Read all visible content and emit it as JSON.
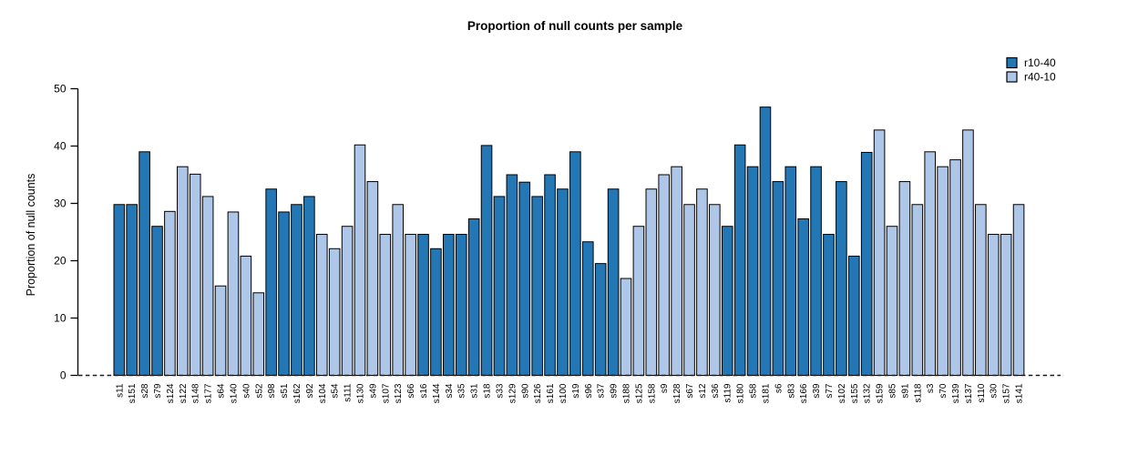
{
  "chart_data": {
    "type": "bar",
    "title": "Proportion of null counts per sample",
    "xlabel": "",
    "ylabel": "Proportion of null counts",
    "ylim": [
      0,
      50
    ],
    "yticks": [
      0,
      10,
      20,
      30,
      40,
      50
    ],
    "grid": false,
    "legend_position": "top-right",
    "baseline_style": "dashed",
    "bar_outline_color": "#000000",
    "axis_color": "#000000",
    "legend": [
      {
        "label": "r10-40",
        "color": "#2377b4"
      },
      {
        "label": "r40-10",
        "color": "#aec7e8"
      }
    ],
    "samples": [
      {
        "label": "s11",
        "group": "r10-40",
        "value": 29.8
      },
      {
        "label": "s151",
        "group": "r10-40",
        "value": 29.8
      },
      {
        "label": "s28",
        "group": "r10-40",
        "value": 39.0
      },
      {
        "label": "s79",
        "group": "r10-40",
        "value": 26.0
      },
      {
        "label": "s124",
        "group": "r40-10",
        "value": 28.6
      },
      {
        "label": "s122",
        "group": "r40-10",
        "value": 36.4
      },
      {
        "label": "s148",
        "group": "r40-10",
        "value": 35.1
      },
      {
        "label": "s177",
        "group": "r40-10",
        "value": 31.2
      },
      {
        "label": "s64",
        "group": "r40-10",
        "value": 15.6
      },
      {
        "label": "s140",
        "group": "r40-10",
        "value": 28.5
      },
      {
        "label": "s40",
        "group": "r40-10",
        "value": 20.8
      },
      {
        "label": "s52",
        "group": "r40-10",
        "value": 14.4
      },
      {
        "label": "s98",
        "group": "r10-40",
        "value": 32.5
      },
      {
        "label": "s51",
        "group": "r10-40",
        "value": 28.5
      },
      {
        "label": "s162",
        "group": "r10-40",
        "value": 29.8
      },
      {
        "label": "s92",
        "group": "r10-40",
        "value": 31.2
      },
      {
        "label": "s104",
        "group": "r40-10",
        "value": 24.6
      },
      {
        "label": "s54",
        "group": "r40-10",
        "value": 22.1
      },
      {
        "label": "s111",
        "group": "r40-10",
        "value": 26.0
      },
      {
        "label": "s130",
        "group": "r40-10",
        "value": 40.2
      },
      {
        "label": "s49",
        "group": "r40-10",
        "value": 33.8
      },
      {
        "label": "s107",
        "group": "r40-10",
        "value": 24.6
      },
      {
        "label": "s123",
        "group": "r40-10",
        "value": 29.8
      },
      {
        "label": "s66",
        "group": "r40-10",
        "value": 24.6
      },
      {
        "label": "s16",
        "group": "r10-40",
        "value": 24.6
      },
      {
        "label": "s144",
        "group": "r10-40",
        "value": 22.1
      },
      {
        "label": "s34",
        "group": "r10-40",
        "value": 24.6
      },
      {
        "label": "s35",
        "group": "r10-40",
        "value": 24.6
      },
      {
        "label": "s31",
        "group": "r10-40",
        "value": 27.3
      },
      {
        "label": "s18",
        "group": "r10-40",
        "value": 40.1
      },
      {
        "label": "s33",
        "group": "r10-40",
        "value": 31.2
      },
      {
        "label": "s129",
        "group": "r10-40",
        "value": 35.0
      },
      {
        "label": "s90",
        "group": "r10-40",
        "value": 33.7
      },
      {
        "label": "s126",
        "group": "r10-40",
        "value": 31.2
      },
      {
        "label": "s161",
        "group": "r10-40",
        "value": 35.0
      },
      {
        "label": "s100",
        "group": "r10-40",
        "value": 32.5
      },
      {
        "label": "s19",
        "group": "r10-40",
        "value": 39.0
      },
      {
        "label": "s96",
        "group": "r10-40",
        "value": 23.3
      },
      {
        "label": "s37",
        "group": "r10-40",
        "value": 19.5
      },
      {
        "label": "s99",
        "group": "r10-40",
        "value": 32.5
      },
      {
        "label": "s188",
        "group": "r40-10",
        "value": 16.9
      },
      {
        "label": "s125",
        "group": "r40-10",
        "value": 26.0
      },
      {
        "label": "s158",
        "group": "r40-10",
        "value": 32.5
      },
      {
        "label": "s9",
        "group": "r40-10",
        "value": 35.0
      },
      {
        "label": "s128",
        "group": "r40-10",
        "value": 36.4
      },
      {
        "label": "s67",
        "group": "r40-10",
        "value": 29.8
      },
      {
        "label": "s12",
        "group": "r40-10",
        "value": 32.5
      },
      {
        "label": "s36",
        "group": "r40-10",
        "value": 29.8
      },
      {
        "label": "s119",
        "group": "r10-40",
        "value": 26.0
      },
      {
        "label": "s180",
        "group": "r10-40",
        "value": 40.2
      },
      {
        "label": "s58",
        "group": "r10-40",
        "value": 36.4
      },
      {
        "label": "s181",
        "group": "r10-40",
        "value": 46.8
      },
      {
        "label": "s6",
        "group": "r10-40",
        "value": 33.8
      },
      {
        "label": "s83",
        "group": "r10-40",
        "value": 36.4
      },
      {
        "label": "s166",
        "group": "r10-40",
        "value": 27.3
      },
      {
        "label": "s39",
        "group": "r10-40",
        "value": 36.4
      },
      {
        "label": "s77",
        "group": "r10-40",
        "value": 24.6
      },
      {
        "label": "s102",
        "group": "r10-40",
        "value": 33.8
      },
      {
        "label": "s155",
        "group": "r10-40",
        "value": 20.8
      },
      {
        "label": "s132",
        "group": "r10-40",
        "value": 38.9
      },
      {
        "label": "s159",
        "group": "r40-10",
        "value": 42.8
      },
      {
        "label": "s85",
        "group": "r40-10",
        "value": 26.0
      },
      {
        "label": "s91",
        "group": "r40-10",
        "value": 33.8
      },
      {
        "label": "s118",
        "group": "r40-10",
        "value": 29.8
      },
      {
        "label": "s3",
        "group": "r40-10",
        "value": 39.0
      },
      {
        "label": "s70",
        "group": "r40-10",
        "value": 36.4
      },
      {
        "label": "s139",
        "group": "r40-10",
        "value": 37.6
      },
      {
        "label": "s137",
        "group": "r40-10",
        "value": 42.8
      },
      {
        "label": "s110",
        "group": "r40-10",
        "value": 29.8
      },
      {
        "label": "s30",
        "group": "r40-10",
        "value": 24.6
      },
      {
        "label": "s157",
        "group": "r40-10",
        "value": 24.6
      },
      {
        "label": "s141",
        "group": "r40-10",
        "value": 29.8
      }
    ]
  }
}
